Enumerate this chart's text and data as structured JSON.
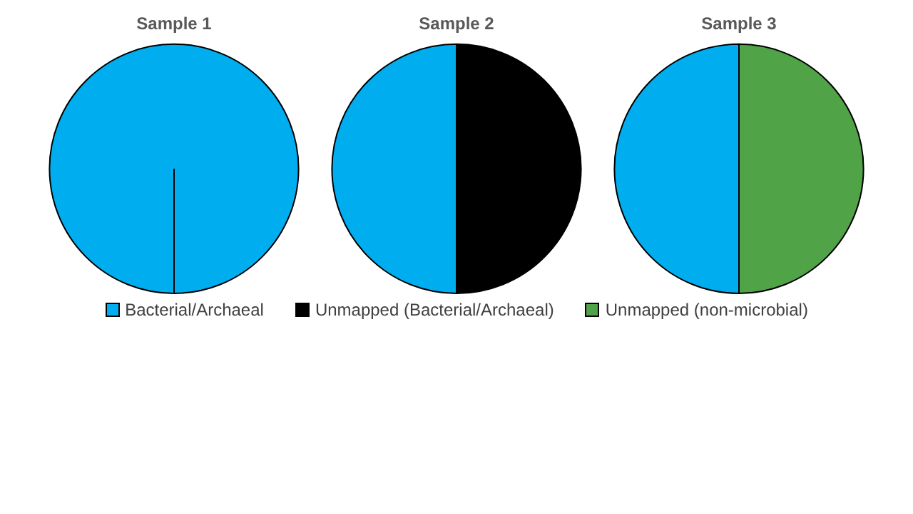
{
  "chart_data": [
    {
      "type": "pie",
      "title": "Sample 1",
      "categories": [
        "Bacterial/Archaeal",
        "Unmapped (Bacterial/Archaeal)",
        "Unmapped (non-microbial)"
      ],
      "values": [
        100,
        0,
        0
      ],
      "colors": [
        "#00adef",
        "#000000",
        "#50a347"
      ],
      "legend": "bottom"
    },
    {
      "type": "pie",
      "title": "Sample 2",
      "categories": [
        null,
        null,
        null
      ],
      "values": [
        50,
        50,
        0
      ],
      "colors": [
        "#00adef",
        "#000000",
        "#50a347"
      ]
    },
    {
      "type": "pie",
      "title": "Sample 3",
      "categories": [
        null,
        null,
        null
      ],
      "values": [
        50,
        0,
        50
      ],
      "colors": [
        "#00adef",
        "#000000",
        "#50a347"
      ]
    }
  ]
}
